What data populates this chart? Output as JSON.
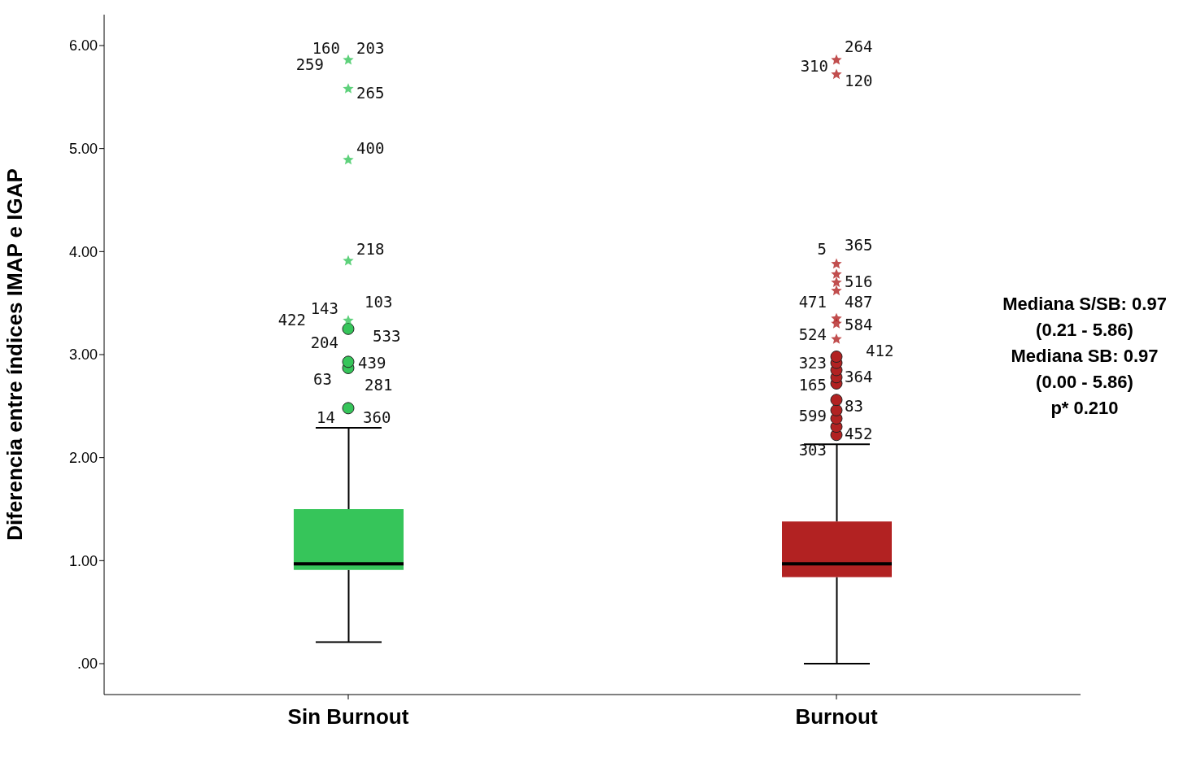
{
  "chart_data": {
    "type": "box",
    "ylabel": "Diferencia entre índices IMAP e IGAP",
    "categories": [
      "Sin Burnout",
      "Burnout"
    ],
    "colors": [
      "#36c55a",
      "#b22222"
    ],
    "boxes": [
      {
        "low": 0.21,
        "q1": 0.91,
        "median": 0.97,
        "q3": 1.5,
        "high": 2.29,
        "outliers": [
          2.48,
          2.87,
          2.93,
          3.25,
          3.33,
          3.91,
          4.89,
          5.58,
          5.86
        ]
      },
      {
        "low": 0.0,
        "q1": 0.84,
        "median": 0.97,
        "q3": 1.38,
        "high": 2.13,
        "outliers": [
          2.22,
          2.3,
          2.38,
          2.46,
          2.56,
          2.72,
          2.78,
          2.85,
          2.92,
          2.98,
          3.15,
          3.3,
          3.35,
          3.62,
          3.7,
          3.78,
          3.88,
          5.72,
          5.86
        ]
      }
    ],
    "ylim": [
      -0.3,
      6.3
    ],
    "yticks": [
      {
        "value": 0,
        "label": ".00"
      },
      {
        "value": 1,
        "label": "1.00"
      },
      {
        "value": 2,
        "label": "2.00"
      },
      {
        "value": 3,
        "label": "3.00"
      },
      {
        "value": 4,
        "label": "4.00"
      },
      {
        "value": 5,
        "label": "5.00"
      },
      {
        "value": 6,
        "label": "6.00"
      }
    ],
    "annotations": [
      "203",
      "160",
      "259",
      "265",
      "400",
      "218",
      "103",
      "143",
      "422",
      "533",
      "439",
      "204",
      "63",
      "281",
      "360",
      "14",
      "264",
      "120",
      "310",
      "365",
      "5",
      "516",
      "487",
      "471",
      "584",
      "524",
      "412",
      "323",
      "364",
      "165",
      "83",
      "599",
      "452",
      "303",
      "Mediana S/SB: 0.97",
      "(0.21 - 5.86)",
      "Mediana SB: 0.97",
      "(0.00 - 5.86)",
      "p* 0.210"
    ]
  }
}
